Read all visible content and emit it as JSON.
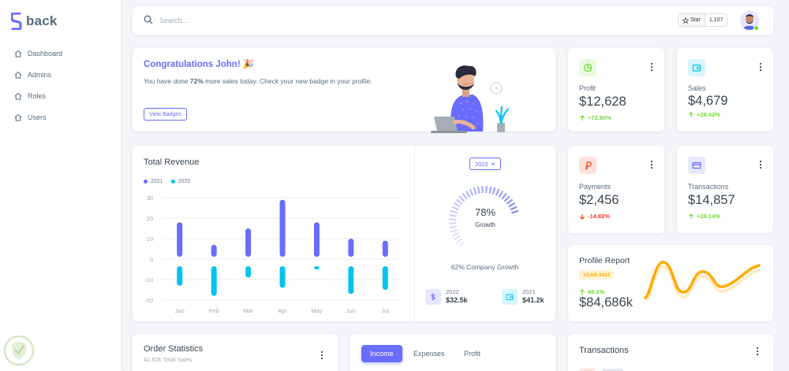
{
  "brand": {
    "name": "back"
  },
  "menu": [
    {
      "label": "Dashboard",
      "icon": "home-icon"
    },
    {
      "label": "Admins",
      "icon": "home-icon"
    },
    {
      "label": "Roles",
      "icon": "home-icon"
    },
    {
      "label": "Users",
      "icon": "home-icon"
    }
  ],
  "topbar": {
    "search_placeholder": "Search...",
    "star_label": "Star",
    "star_count": "1,107"
  },
  "welcome": {
    "title": "Congratulations John! 🎉",
    "text_before": "You have done ",
    "text_bold": "72%",
    "text_after": " more sales today. Check your new badge in your profile.",
    "button": "View Badges"
  },
  "stats": {
    "profit": {
      "label": "Profit",
      "value": "$12,628",
      "change": "+72.80%",
      "trend": "up"
    },
    "sales": {
      "label": "Sales",
      "value": "$4,679",
      "change": "+28.42%",
      "trend": "up"
    },
    "payments": {
      "label": "Payments",
      "value": "$2,456",
      "change": "-14.82%",
      "trend": "down"
    },
    "transactions": {
      "label": "Transactions",
      "value": "$14,857",
      "change": "+28.14%",
      "trend": "up"
    }
  },
  "revenue": {
    "title": "Total Revenue",
    "year_select": "2022",
    "growth_percent": "78%",
    "growth_label": "Growth",
    "growth_value": 78,
    "company_growth": "62% Company Growth",
    "summary": [
      {
        "year": "2022",
        "value": "$32.5k"
      },
      {
        "year": "2021",
        "value": "$41.2k"
      }
    ]
  },
  "chart_data": {
    "type": "bar",
    "categories": [
      "Jan",
      "Feb",
      "Mar",
      "Apr",
      "May",
      "Jun",
      "Jul"
    ],
    "series": [
      {
        "name": "2021",
        "values": [
          18,
          7,
          15,
          29,
          18,
          10,
          9
        ]
      },
      {
        "name": "2020",
        "values": [
          -13,
          -18,
          -9,
          -14,
          -5,
          -17,
          -15
        ]
      }
    ],
    "ylim": [
      -20,
      30
    ],
    "yticks": [
      "30",
      "20",
      "10",
      "0",
      "-10",
      "-20"
    ],
    "legend_position": "top-left",
    "grid": true,
    "colors": [
      "#696cff",
      "#03c3ec"
    ]
  },
  "profile_report": {
    "title": "Profile Report",
    "badge": "YEAR 2021",
    "change": "68.2%",
    "value": "$84,686k"
  },
  "order_stats": {
    "title": "Order Statistics",
    "subtitle": "42.82k Total Sales"
  },
  "income_tabs": [
    "Income",
    "Expenses",
    "Profit"
  ],
  "transactions_card": {
    "title": "Transactions"
  },
  "colors": {
    "primary": "#696cff",
    "success": "#71dd37",
    "danger": "#ff3e1d",
    "info": "#03c3ec",
    "warning": "#ffab00"
  }
}
